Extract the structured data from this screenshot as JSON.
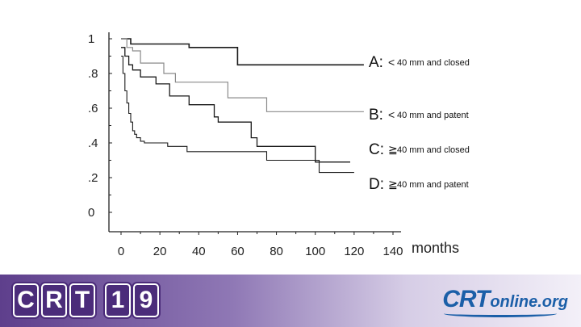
{
  "chart_data": {
    "type": "line",
    "title": "",
    "xlabel": "months",
    "ylabel": "",
    "xlim": [
      0,
      140
    ],
    "ylim": [
      0,
      1
    ],
    "grid": false,
    "y_tick_labels": [
      "1",
      ".8",
      ".6",
      ".4",
      ".2",
      "0"
    ],
    "y_tick_values": [
      1,
      0.8,
      0.6,
      0.4,
      0.2,
      0
    ],
    "x_tick_labels": [
      "0",
      "20",
      "40",
      "60",
      "80",
      "100",
      "120",
      "140"
    ],
    "x_tick_values": [
      0,
      20,
      40,
      60,
      80,
      100,
      120,
      140
    ],
    "series": [
      {
        "name": "A",
        "letter": "A:",
        "symbol": "<",
        "desc": "40 mm and closed",
        "color": "#1a1a1a",
        "width": 1.6,
        "x": [
          0,
          5,
          5,
          35,
          35,
          60,
          60,
          125
        ],
        "y": [
          1,
          1,
          0.97,
          0.97,
          0.95,
          0.95,
          0.85,
          0.85
        ]
      },
      {
        "name": "B",
        "letter": "B:",
        "symbol": "<",
        "desc": "40 mm and patent",
        "color": "#8a8a8a",
        "width": 1.2,
        "x": [
          0,
          3,
          3,
          6,
          6,
          10,
          10,
          22,
          22,
          28,
          28,
          55,
          55,
          75,
          75,
          125
        ],
        "y": [
          1,
          1,
          0.95,
          0.95,
          0.93,
          0.93,
          0.86,
          0.86,
          0.8,
          0.8,
          0.75,
          0.75,
          0.66,
          0.66,
          0.58,
          0.58
        ]
      },
      {
        "name": "C",
        "letter": "C:",
        "symbol": "≧",
        "desc": "40 mm and closed",
        "color": "#1a1a1a",
        "width": 1.3,
        "x": [
          0,
          2,
          2,
          4,
          4,
          6,
          6,
          10,
          10,
          18,
          18,
          25,
          25,
          35,
          35,
          48,
          48,
          50,
          50,
          67,
          67,
          70,
          70,
          100,
          100,
          118
        ],
        "y": [
          0.95,
          0.95,
          0.9,
          0.9,
          0.85,
          0.85,
          0.82,
          0.82,
          0.78,
          0.78,
          0.74,
          0.74,
          0.67,
          0.67,
          0.62,
          0.62,
          0.55,
          0.55,
          0.52,
          0.52,
          0.43,
          0.43,
          0.38,
          0.38,
          0.29,
          0.29
        ]
      },
      {
        "name": "D",
        "letter": "D:",
        "symbol": "≧",
        "desc": "40 mm and patent",
        "color": "#1a1a1a",
        "width": 1.1,
        "x": [
          0,
          1,
          1,
          2,
          2,
          3,
          3,
          4,
          4,
          5,
          5,
          6,
          6,
          7,
          7,
          8,
          8,
          10,
          10,
          12,
          12,
          24,
          24,
          34,
          34,
          75,
          75,
          102,
          102,
          120
        ],
        "y": [
          0.9,
          0.9,
          0.8,
          0.8,
          0.7,
          0.7,
          0.63,
          0.63,
          0.57,
          0.57,
          0.52,
          0.52,
          0.47,
          0.47,
          0.45,
          0.45,
          0.43,
          0.43,
          0.41,
          0.41,
          0.4,
          0.4,
          0.38,
          0.38,
          0.35,
          0.35,
          0.3,
          0.3,
          0.23,
          0.23
        ]
      }
    ]
  },
  "footer": {
    "crt_letters": [
      "C",
      "R",
      "T",
      "1",
      "9"
    ],
    "online_brand": "CRT",
    "online_suffix": "online.org",
    "accent_color": "#1b5fa8",
    "band_color": "#5e3f8c"
  }
}
